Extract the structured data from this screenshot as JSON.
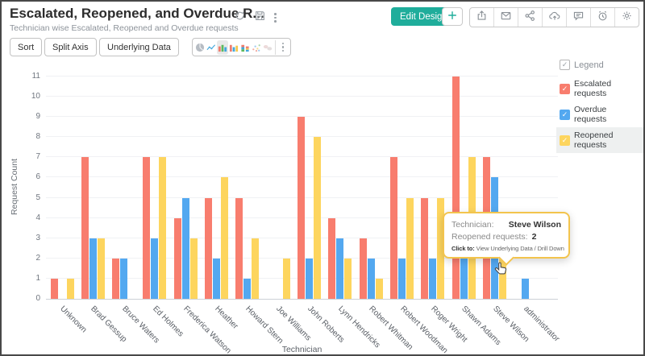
{
  "header": {
    "title": "Escalated, Reopened, and Overdue R...",
    "subtitle": "Technician wise Escalated, Reopened and Overdue requests",
    "edit_design_label": "Edit Design",
    "title_icons": [
      "refresh-icon",
      "save-icon",
      "more-options-icon"
    ],
    "action_icons": [
      "add-icon",
      "export-icon",
      "email-icon",
      "share-icon",
      "cloud-publish-icon",
      "comment-icon",
      "schedule-icon",
      "settings-icon"
    ]
  },
  "toolbar": {
    "sort_label": "Sort",
    "split_axis_label": "Split Axis",
    "underlying_data_label": "Underlying Data",
    "chart_type_icons": [
      "pie-chart-icon",
      "line-chart-icon",
      "bar-chart-icon",
      "column-chart-icon",
      "stacked-chart-icon",
      "scatter-chart-icon",
      "geo-chart-icon",
      "more-chart-types-icon"
    ],
    "selected_chart_type": "bar-chart-icon"
  },
  "legend": {
    "title": "Legend",
    "items": [
      {
        "label": "Escalated requests",
        "color": "#F87D6E",
        "checked": true,
        "highlighted": false
      },
      {
        "label": "Overdue requests",
        "color": "#53A8F0",
        "checked": true,
        "highlighted": false
      },
      {
        "label": "Reopened requests",
        "color": "#FDD55E",
        "checked": true,
        "highlighted": true
      }
    ]
  },
  "tooltip": {
    "technician_label": "Technician:",
    "technician_value": "Steve Wilson",
    "series_label": "Reopened requests:",
    "series_value": "2",
    "click_label": "Click to:",
    "click_value": "View Underlying Data / Drill Down"
  },
  "chart_data": {
    "type": "bar",
    "title": "",
    "xlabel": "Technician",
    "ylabel": "Request Count",
    "ylim": [
      0,
      11
    ],
    "yticks": [
      0,
      1,
      2,
      3,
      4,
      5,
      6,
      7,
      8,
      9,
      10,
      11
    ],
    "grid": true,
    "legend_position": "right",
    "categories": [
      "Unknown",
      "Brad Gessup",
      "Bruce Waters",
      "Ed Holmes",
      "Frederica Watson",
      "Heather",
      "Howard Stern",
      "Joe Williams",
      "John Roberts",
      "Lynn Hendricks",
      "Robert Whitman",
      "Robert Woodman",
      "Roger Wright",
      "Shawn Adams",
      "Steve Wilson",
      "administrator"
    ],
    "series": [
      {
        "name": "Escalated requests",
        "color": "#F87D6E",
        "values": [
          1,
          7,
          2,
          7,
          4,
          5,
          5,
          0,
          9,
          4,
          3,
          7,
          5,
          11,
          7,
          0
        ]
      },
      {
        "name": "Overdue requests",
        "color": "#53A8F0",
        "values": [
          0,
          3,
          2,
          3,
          5,
          2,
          1,
          0,
          2,
          3,
          2,
          2,
          2,
          2,
          6,
          1
        ]
      },
      {
        "name": "Reopened requests",
        "color": "#FDD55E",
        "values": [
          1,
          3,
          0,
          7,
          3,
          6,
          3,
          2,
          8,
          2,
          1,
          5,
          5,
          7,
          2,
          0
        ]
      }
    ],
    "hovered": {
      "category": "Steve Wilson",
      "series": "Reopened requests",
      "value": 2
    }
  },
  "colors": {
    "accent_teal": "#1FAD9B",
    "escalated": "#F87D6E",
    "overdue": "#53A8F0",
    "reopened": "#FDD55E",
    "tooltip_border": "#F3C44D"
  }
}
